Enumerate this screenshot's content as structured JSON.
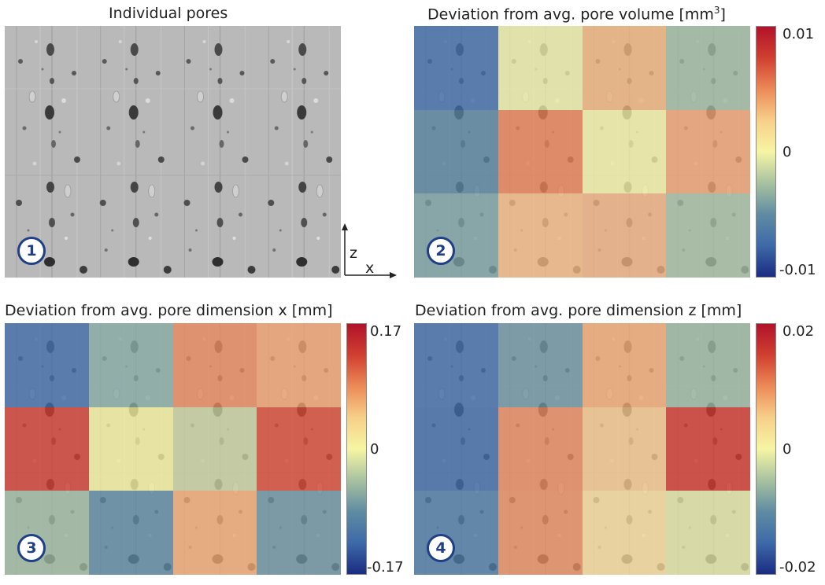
{
  "panel1": {
    "title": "Individual pores",
    "badge": "1"
  },
  "panel2": {
    "title": "Deviation from avg. pore volume [mm",
    "unit_sup": "3",
    "title_end": "]",
    "badge": "2",
    "colorbar": {
      "max": "0.01",
      "mid": "0",
      "min": "-0.01"
    },
    "cells": [
      [
        "#3e6aa8",
        "#ececa8",
        "#eeb27a",
        "#9eb8a0"
      ],
      [
        "#55809e",
        "#e87d52",
        "#f2f0a4",
        "#f0a070"
      ],
      [
        "#7aa0a2",
        "#f3b682",
        "#f0ae80",
        "#a4bca0"
      ]
    ]
  },
  "panel3": {
    "title": "Deviation from avg. pore dimension x [mm]",
    "badge": "3",
    "colorbar": {
      "max": "0.17",
      "mid": "0",
      "min": "-0.17"
    },
    "cells": [
      [
        "#3e6aa8",
        "#86aaa4",
        "#e8865a",
        "#eea06e"
      ],
      [
        "#d03a2e",
        "#f4ef9c",
        "#c6cf9e",
        "#d84632"
      ],
      [
        "#9cb8a0",
        "#5a86a0",
        "#efa870",
        "#6a90a0"
      ]
    ]
  },
  "panel4": {
    "title": "Deviation from avg. pore dimension z [mm]",
    "badge": "4",
    "colorbar": {
      "max": "0.02",
      "mid": "0",
      "min": "-0.02"
    },
    "cells": [
      [
        "#3e6aa8",
        "#6a92a2",
        "#efa870",
        "#9ab6a0"
      ],
      [
        "#3c68a6",
        "#e8865a",
        "#f2c48a",
        "#d0352c"
      ],
      [
        "#4a78a4",
        "#e88a5e",
        "#f5d898",
        "#dfe2a0"
      ]
    ]
  },
  "axes": {
    "vertical": "z",
    "horizontal": "x"
  },
  "colormap": [
    "#b2122a",
    "#d04030",
    "#ec8a58",
    "#f7d088",
    "#f6f5a4",
    "#a8c2a0",
    "#5f8ca2",
    "#3d6aa8",
    "#1a2c82"
  ]
}
